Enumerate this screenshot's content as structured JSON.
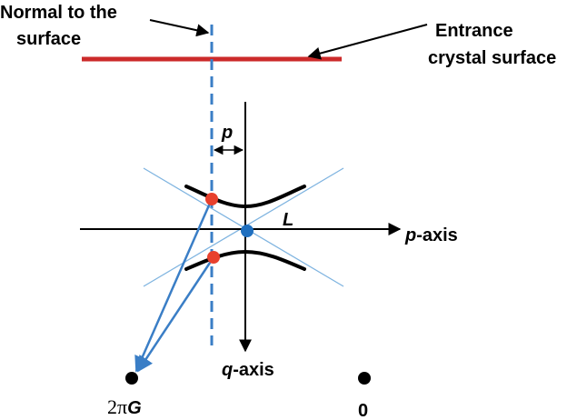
{
  "labels": {
    "normal_line1": "Normal to the",
    "normal_line2": "surface",
    "entrance_line1": "Entrance",
    "entrance_line2": "crystal surface",
    "p_offset": "p",
    "L_point": "L",
    "p_axis_var": "p",
    "p_axis_suffix": "-axis",
    "q_axis_var": "q",
    "q_axis_suffix": "-axis",
    "two_pi": "2π",
    "G_symbol": "G",
    "origin": "0"
  },
  "colors": {
    "surface_line": "#cc2a2a",
    "normal_dashed": "#3a7ec6",
    "asymptotes": "#7fb4e0",
    "wave_vectors": "#3a7ec6",
    "tie_points": "#e8412e",
    "laue_point": "#1f6fbf",
    "reciprocal_points": "#000000"
  }
}
